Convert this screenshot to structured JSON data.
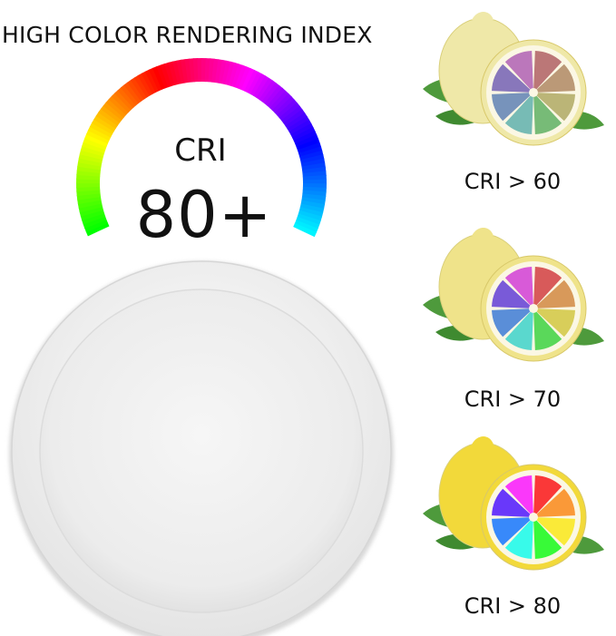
{
  "headline": "HIGH COLOR RENDERING INDEX",
  "hero": {
    "cri_label": "CRI",
    "cri_value": "80+"
  },
  "colors": {
    "panel_white": "#f3f3f3",
    "leaf_green": "#4e9a3c",
    "lemon_pale": "#efe8a0",
    "lemon_yellow": "#f2dc3a"
  },
  "lemons": [
    {
      "caption": "CRI > 60",
      "saturation": 0.35,
      "lemon_color": "#efe8a8"
    },
    {
      "caption": "CRI > 70",
      "saturation": 0.65,
      "lemon_color": "#efe38a"
    },
    {
      "caption": "CRI > 80",
      "saturation": 1.0,
      "lemon_color": "#f2d93a"
    }
  ]
}
